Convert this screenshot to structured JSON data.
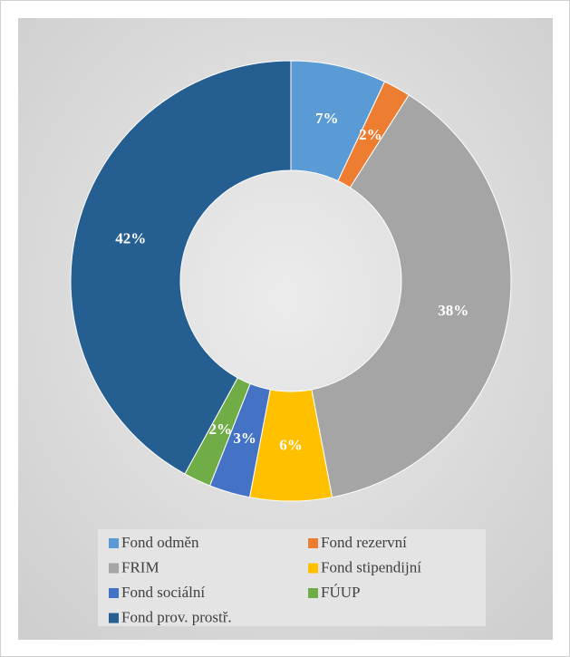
{
  "chart_data": {
    "type": "doughnut",
    "categories": [
      "Fond odměn",
      "Fond rezervní",
      "FRIM",
      "Fond stipendijní",
      "Fond sociální",
      "FÚUP",
      "Fond prov. prostř."
    ],
    "values": [
      7,
      2,
      38,
      6,
      3,
      2,
      42
    ],
    "value_labels": [
      "7%",
      "2%",
      "38%",
      "6%",
      "3%",
      "2%",
      "42%"
    ],
    "colors": [
      "#5b9bd5",
      "#ed7d31",
      "#a5a5a5",
      "#ffc000",
      "#4472c4",
      "#70ad47",
      "#255e91"
    ],
    "legend": "bottom"
  }
}
